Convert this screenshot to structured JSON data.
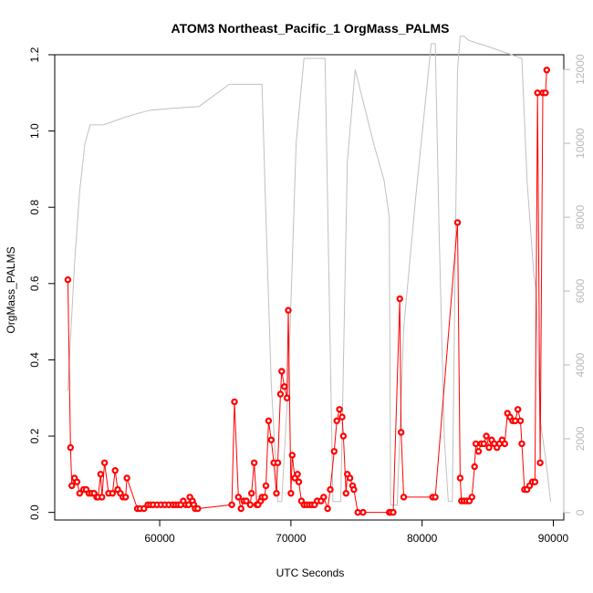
{
  "chart_data": {
    "type": "line",
    "title": "ATOM3 Northeast_Pacific_1 OrgMass_PALMS",
    "xlabel": "UTC Seconds",
    "ylabel": "OrgMass_PALMS",
    "xlim": [
      52000,
      90800
    ],
    "ylim": [
      -0.02,
      1.2
    ],
    "y2lim": [
      -200,
      12400
    ],
    "x_ticks": [
      60000,
      70000,
      80000,
      90000
    ],
    "y_ticks": [
      0.0,
      0.2,
      0.4,
      0.6,
      0.8,
      1.0,
      1.2
    ],
    "y_tick_labels": [
      "0.0",
      "0.2",
      "0.4",
      "0.6",
      "0.8",
      "1.0",
      "1.2"
    ],
    "y2_ticks": [
      0,
      2000,
      4000,
      6000,
      8000,
      10000,
      12000
    ],
    "grid": false,
    "legend": "none",
    "colors": {
      "data": "#ff0000",
      "secondary": "#c0c0c0",
      "secondary_axis": "#b8b8b8"
    },
    "series": [
      {
        "axis": "left",
        "style": "line+markers",
        "x": [
          53000,
          53200,
          53300,
          53500,
          53700,
          53900,
          54200,
          54400,
          54600,
          54800,
          55000,
          55200,
          55300,
          55500,
          55600,
          55800,
          56100,
          56400,
          56600,
          56800,
          57000,
          57200,
          57400,
          57500,
          58300,
          58500,
          58800,
          59100,
          59300,
          59500,
          59800,
          60100,
          60400,
          60700,
          61000,
          61200,
          61400,
          61600,
          61800,
          62000,
          62200,
          62300,
          62500,
          62600,
          62700,
          62900,
          65500,
          65700,
          66000,
          66200,
          66400,
          66600,
          66900,
          67000,
          67200,
          67400,
          67500,
          67700,
          67800,
          68000,
          68100,
          68300,
          68500,
          68700,
          68900,
          69000,
          69200,
          69300,
          69500,
          69700,
          69800,
          70000,
          70100,
          70300,
          70500,
          70600,
          70800,
          71000,
          71200,
          71400,
          71600,
          71800,
          72000,
          72300,
          72500,
          72800,
          73000,
          73300,
          73500,
          73700,
          73900,
          74000,
          74200,
          74300,
          74500,
          74700,
          74800,
          75100,
          75500,
          77500,
          77600,
          77800,
          78300,
          78400,
          78600,
          80800,
          81000,
          82700,
          82900,
          83000,
          83200,
          83400,
          83600,
          83800,
          84000,
          84100,
          84300,
          84500,
          84700,
          84900,
          85100,
          85300,
          85500,
          85700,
          85900,
          86100,
          86300,
          86500,
          86700,
          86900,
          87100,
          87300,
          87500,
          87600,
          87800,
          88000,
          88200,
          88400,
          88600,
          88800,
          89000,
          89200,
          89400,
          89500
        ],
        "y": [
          0.61,
          0.17,
          0.07,
          0.09,
          0.08,
          0.05,
          0.06,
          0.06,
          0.05,
          0.05,
          0.05,
          0.04,
          0.04,
          0.1,
          0.04,
          0.13,
          0.05,
          0.05,
          0.11,
          0.06,
          0.05,
          0.04,
          0.04,
          0.09,
          0.01,
          0.01,
          0.01,
          0.02,
          0.02,
          0.02,
          0.02,
          0.02,
          0.02,
          0.02,
          0.02,
          0.02,
          0.02,
          0.02,
          0.03,
          0.02,
          0.02,
          0.04,
          0.03,
          0.02,
          0.01,
          0.01,
          0.02,
          0.29,
          0.04,
          0.01,
          0.03,
          0.03,
          0.02,
          0.05,
          0.13,
          0.02,
          0.02,
          0.03,
          0.04,
          0.04,
          0.07,
          0.24,
          0.19,
          0.13,
          0.05,
          0.13,
          0.31,
          0.37,
          0.33,
          0.3,
          0.53,
          0.05,
          0.15,
          0.09,
          0.1,
          0.08,
          0.03,
          0.02,
          0.02,
          0.02,
          0.02,
          0.02,
          0.03,
          0.03,
          0.04,
          0.01,
          0.06,
          0.16,
          0.24,
          0.27,
          0.25,
          0.2,
          0.05,
          0.1,
          0.09,
          0.07,
          0.06,
          0.0,
          0.0,
          0.0,
          0.0,
          0.0,
          0.56,
          0.21,
          0.04,
          0.04,
          0.04,
          0.76,
          0.09,
          0.03,
          0.03,
          0.03,
          0.03,
          0.04,
          0.12,
          0.18,
          0.16,
          0.18,
          0.18,
          0.2,
          0.17,
          0.19,
          0.18,
          0.17,
          0.18,
          0.19,
          0.18,
          0.26,
          0.25,
          0.24,
          0.24,
          0.27,
          0.24,
          0.18,
          0.06,
          0.06,
          0.07,
          0.08,
          0.08,
          1.1,
          0.13,
          1.1,
          1.1,
          1.16
        ]
      },
      {
        "axis": "right",
        "style": "line",
        "x": [
          53000,
          53200,
          53500,
          53900,
          54300,
          54700,
          55700,
          56500,
          57300,
          58200,
          59300,
          61000,
          63000,
          65300,
          67800,
          68100,
          68500,
          69000,
          69300,
          69800,
          70400,
          71000,
          71600,
          72600,
          73200,
          73800,
          74300,
          74900,
          75600,
          76300,
          77100,
          77500,
          77600,
          77900,
          78100,
          78600,
          79500,
          80700,
          81000,
          81300,
          81700,
          82000,
          82300,
          82700,
          82900,
          83200,
          83500,
          84300,
          84800,
          85200,
          87600,
          87700,
          88000,
          88500,
          88700,
          89000,
          89400,
          89800
        ],
        "y": [
          3300,
          4700,
          6700,
          8700,
          10000,
          10500,
          10500,
          10600,
          10700,
          10800,
          10900,
          10950,
          11000,
          11600,
          11600,
          8000,
          3500,
          300,
          300,
          3500,
          10000,
          12300,
          12300,
          12300,
          300,
          300,
          9500,
          12000,
          11000,
          10000,
          9000,
          8000,
          200,
          200,
          200,
          5000,
          8500,
          12700,
          12700,
          7500,
          2000,
          300,
          300,
          12000,
          12900,
          12900,
          12800,
          12700,
          12650,
          12600,
          12300,
          11500,
          9000,
          6500,
          6000,
          2500,
          1500,
          300
        ]
      }
    ]
  }
}
